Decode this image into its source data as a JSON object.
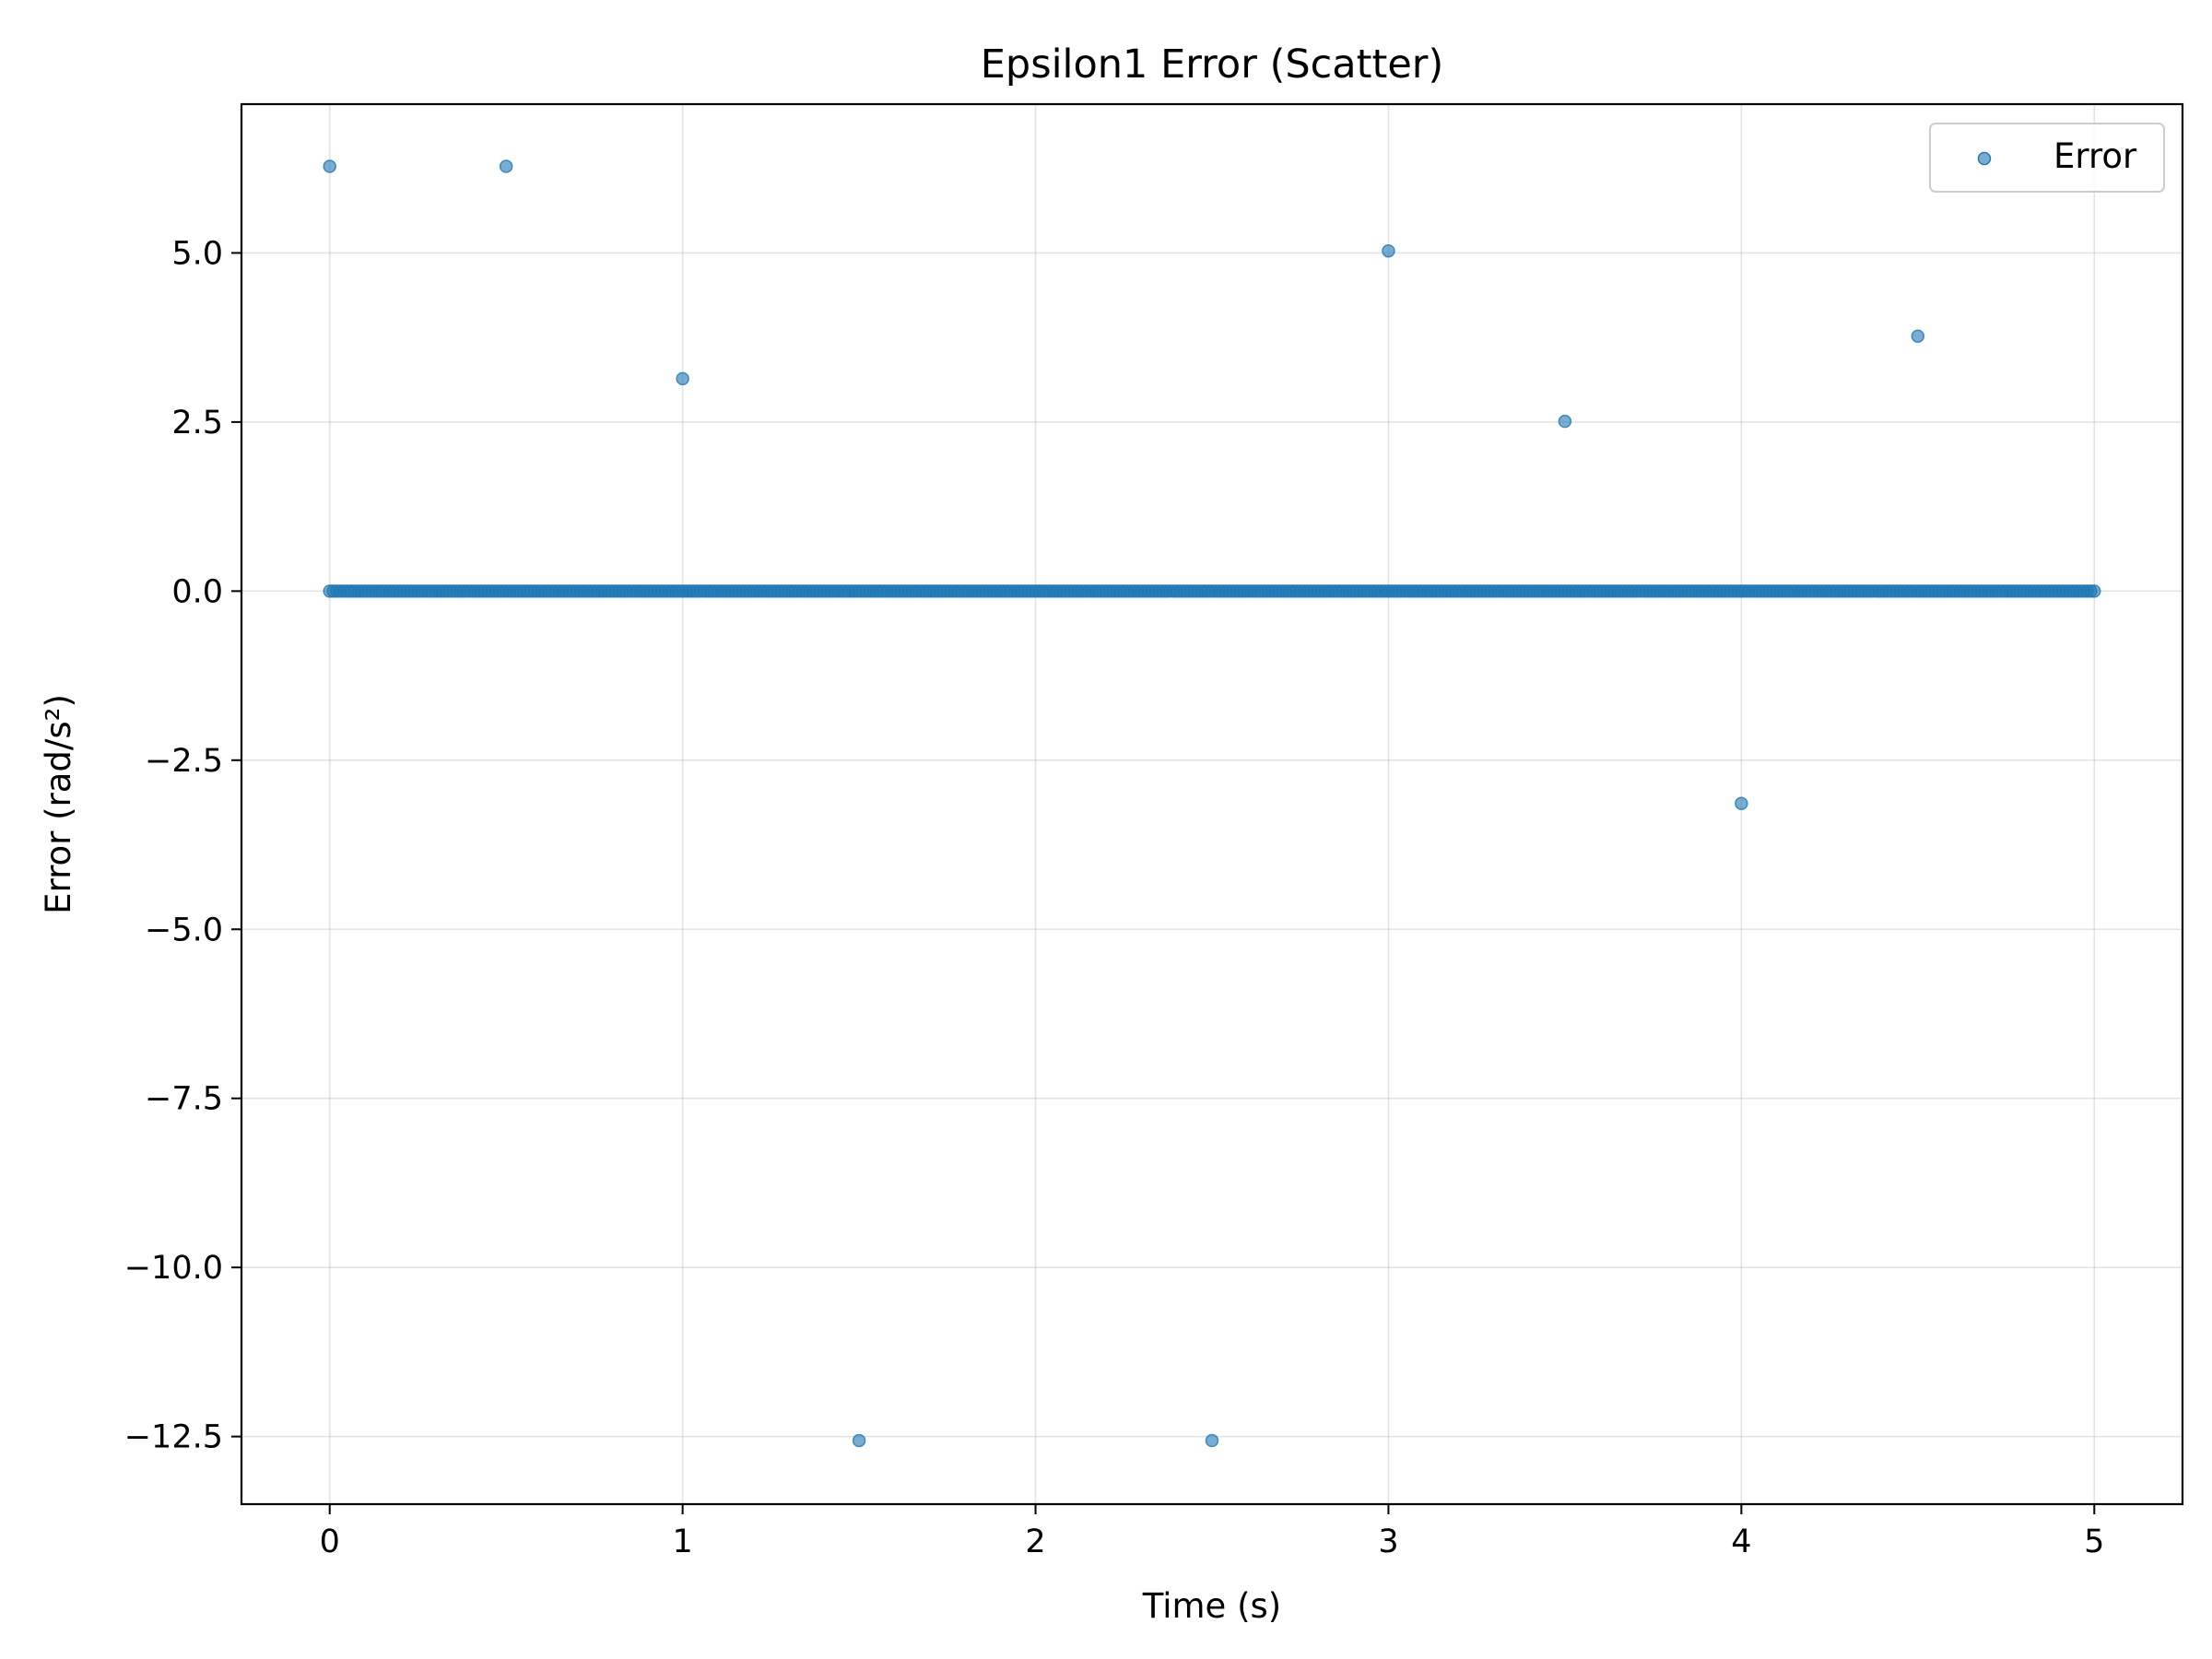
{
  "chart_data": {
    "type": "scatter",
    "title": "Epsilon1 Error (Scatter)",
    "xlabel": "Time (s)",
    "ylabel": "Error (rad/s²)",
    "xlim": [
      -0.25,
      5.25
    ],
    "ylim": [
      -13.5,
      7.2
    ],
    "xticks": [
      0,
      1,
      2,
      3,
      4,
      5
    ],
    "xtick_labels": [
      "0",
      "1",
      "2",
      "3",
      "4",
      "5"
    ],
    "yticks": [
      5.0,
      2.5,
      0.0,
      -2.5,
      -5.0,
      -7.5,
      -10.0,
      -12.5
    ],
    "ytick_labels": [
      "5.0",
      "2.5",
      "0.0",
      "−2.5",
      "−5.0",
      "−7.5",
      "−10.0",
      "−12.5"
    ],
    "grid": true,
    "legend_position": "top-right",
    "series": [
      {
        "name": "Error",
        "color": "#1f77b4",
        "marker_alpha": 0.6,
        "baseline": {
          "x_start": 0,
          "x_end": 5,
          "step": 0.01,
          "y": 0.0
        },
        "points": [
          {
            "x": 0.0,
            "y": 6.28
          },
          {
            "x": 0.5,
            "y": 6.28
          },
          {
            "x": 1.0,
            "y": 3.14
          },
          {
            "x": 1.5,
            "y": -12.56
          },
          {
            "x": 2.5,
            "y": -12.56
          },
          {
            "x": 3.0,
            "y": 5.03
          },
          {
            "x": 3.5,
            "y": 2.51
          },
          {
            "x": 4.0,
            "y": -3.14
          },
          {
            "x": 4.5,
            "y": 3.77
          }
        ]
      }
    ]
  }
}
